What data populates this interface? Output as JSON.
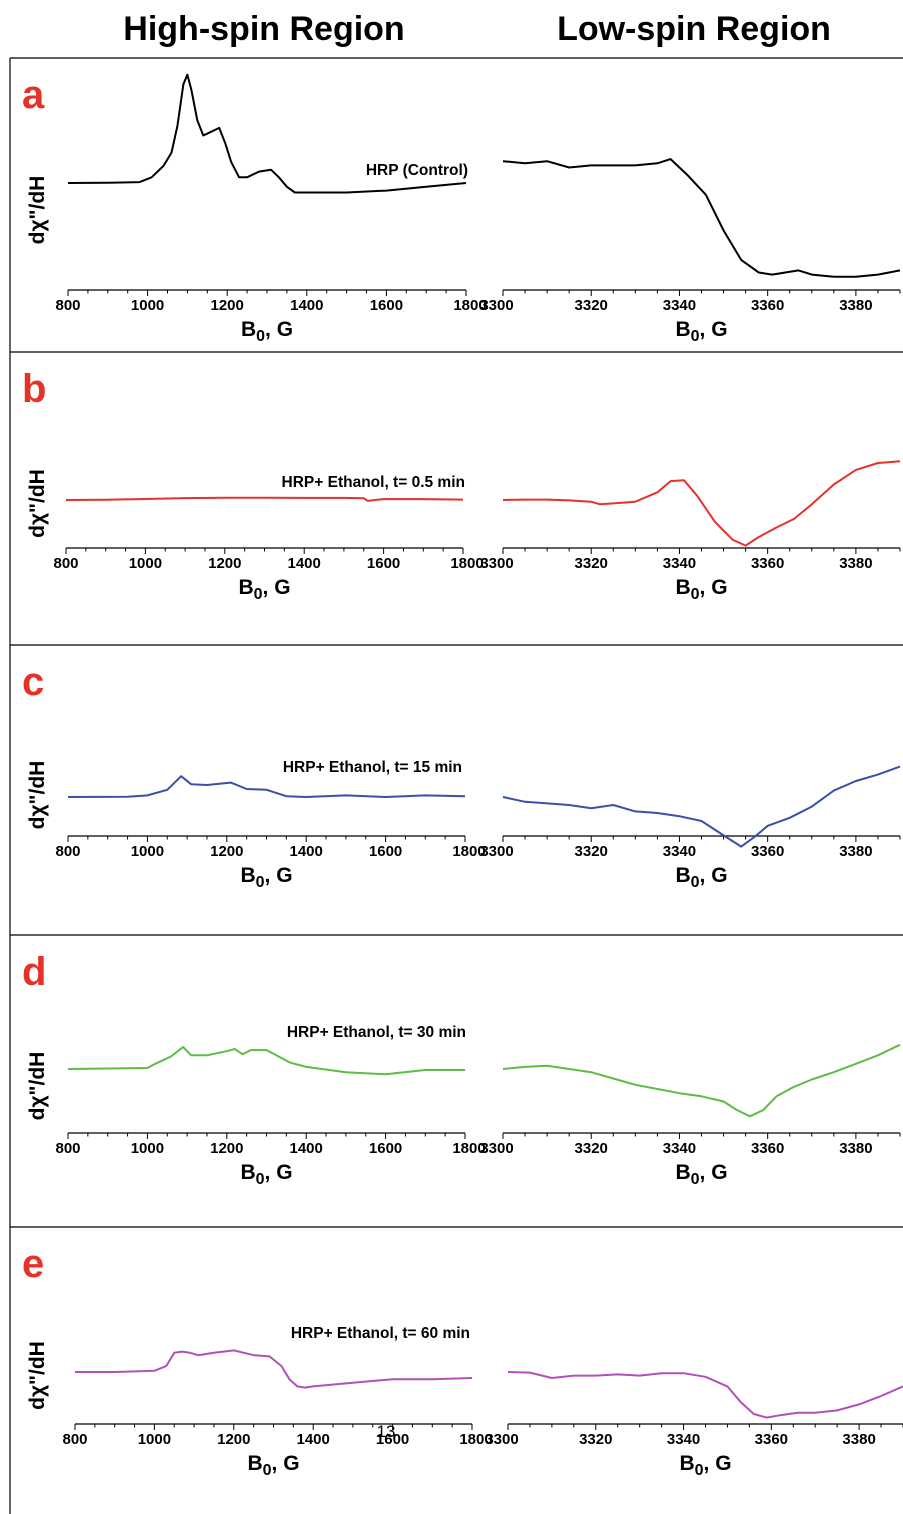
{
  "headers": {
    "left": "High-spin Region",
    "right": "Low-spin Region"
  },
  "page_number": "13",
  "colors": {
    "panel_label": "#e53229",
    "a": "#000000",
    "b": "#e5322d",
    "c": "#3a4fa8",
    "d": "#5dbb46",
    "e": "#b34fb8"
  },
  "chart_data": [
    {
      "panel": "a",
      "label": "a",
      "type": "line",
      "annotation": "HRP (Control)",
      "ylabel": "dχ\"/dH",
      "high_spin": {
        "xlabel": "B0, G",
        "xlim": [
          800,
          1800
        ],
        "xticks": [
          "800",
          "1000",
          "1200",
          "1400",
          "1600",
          "1800"
        ],
        "x": [
          800,
          900,
          980,
          1010,
          1040,
          1060,
          1075,
          1090,
          1100,
          1110,
          1125,
          1140,
          1160,
          1180,
          1195,
          1210,
          1230,
          1250,
          1280,
          1310,
          1330,
          1350,
          1370,
          1400,
          1500,
          1600,
          1700,
          1800
        ],
        "y": [
          0,
          0.01,
          0.05,
          0.3,
          0.9,
          1.6,
          3.0,
          5.2,
          5.7,
          4.9,
          3.3,
          2.5,
          2.7,
          2.9,
          2.1,
          1.1,
          0.3,
          0.3,
          0.6,
          0.7,
          0.3,
          -0.2,
          -0.5,
          -0.5,
          -0.5,
          -0.4,
          -0.2,
          0
        ]
      },
      "low_spin": {
        "xlabel": "B0, G",
        "xlim": [
          3300,
          3390
        ],
        "xticks": [
          "3300",
          "3320",
          "3340",
          "3360",
          "3380"
        ],
        "x": [
          3300,
          3305,
          3310,
          3315,
          3320,
          3325,
          3330,
          3335,
          3338,
          3342,
          3346,
          3350,
          3354,
          3358,
          3361,
          3364,
          3367,
          3370,
          3375,
          3380,
          3385,
          3390
        ],
        "y": [
          1.8,
          1.7,
          1.8,
          1.5,
          1.6,
          1.6,
          1.6,
          1.7,
          1.9,
          1.1,
          0.2,
          -1.5,
          -2.9,
          -3.5,
          -3.6,
          -3.5,
          -3.4,
          -3.6,
          -3.7,
          -3.7,
          -3.6,
          -3.4
        ]
      }
    },
    {
      "panel": "b",
      "label": "b",
      "type": "line",
      "annotation": "HRP+ Ethanol, t= 0.5 min",
      "ylabel": "dχ\"/dH",
      "high_spin": {
        "xlabel": "B0, G",
        "xlim": [
          800,
          1800
        ],
        "xticks": [
          "800",
          "1000",
          "1200",
          "1400",
          "1600",
          "1800"
        ],
        "x": [
          800,
          900,
          1000,
          1100,
          1200,
          1300,
          1400,
          1500,
          1550,
          1560,
          1600,
          1700,
          1800
        ],
        "y": [
          0,
          0.04,
          0.12,
          0.22,
          0.27,
          0.27,
          0.25,
          0.25,
          0.2,
          -0.1,
          0.1,
          0.1,
          0.05
        ]
      },
      "low_spin": {
        "xlabel": "B0, G",
        "xlim": [
          3300,
          3390
        ],
        "xticks": [
          "3300",
          "3320",
          "3340",
          "3360",
          "3380"
        ],
        "x": [
          3300,
          3305,
          3310,
          3315,
          3320,
          3322,
          3325,
          3330,
          3335,
          3338,
          3341,
          3344,
          3348,
          3352,
          3355,
          3358,
          3362,
          3366,
          3370,
          3375,
          3380,
          3385,
          3390
        ],
        "y": [
          0,
          0.05,
          0.05,
          -0.05,
          -0.2,
          -0.5,
          -0.4,
          -0.2,
          0.9,
          2.2,
          2.3,
          0.5,
          -2.5,
          -4.6,
          -5.3,
          -4.3,
          -3.2,
          -2.2,
          -0.5,
          1.8,
          3.5,
          4.3,
          4.5
        ]
      }
    },
    {
      "panel": "c",
      "label": "c",
      "type": "line",
      "annotation": "HRP+ Ethanol, t= 15 min",
      "ylabel": "dχ\"/dH",
      "high_spin": {
        "xlabel": "B0, G",
        "xlim": [
          800,
          1800
        ],
        "xticks": [
          "800",
          "1000",
          "1200",
          "1400",
          "1600",
          "1800"
        ],
        "x": [
          800,
          950,
          1000,
          1050,
          1085,
          1110,
          1150,
          1210,
          1250,
          1300,
          1350,
          1400,
          1500,
          1600,
          1700,
          1800
        ],
        "y": [
          0,
          0.02,
          0.1,
          0.45,
          1.3,
          0.8,
          0.75,
          0.9,
          0.5,
          0.45,
          0.05,
          0.0,
          0.1,
          0.0,
          0.1,
          0.05
        ]
      },
      "low_spin": {
        "xlabel": "B0, G",
        "xlim": [
          3300,
          3390
        ],
        "xticks": [
          "3300",
          "3320",
          "3340",
          "3360",
          "3380"
        ],
        "x": [
          3300,
          3305,
          3310,
          3315,
          3320,
          3325,
          3330,
          3335,
          3340,
          3345,
          3350,
          3354,
          3357,
          3360,
          3365,
          3370,
          3375,
          3380,
          3385,
          3390
        ],
        "y": [
          0,
          -0.3,
          -0.4,
          -0.5,
          -0.7,
          -0.5,
          -0.9,
          -1.0,
          -1.2,
          -1.5,
          -2.4,
          -3.1,
          -2.5,
          -1.8,
          -1.3,
          -0.6,
          0.4,
          1.0,
          1.4,
          1.9
        ]
      }
    },
    {
      "panel": "d",
      "label": "d",
      "type": "line",
      "annotation": "HRP+ Ethanol, t= 30 min",
      "ylabel": "dχ\"/dH",
      "high_spin": {
        "xlabel": "B0, G",
        "xlim": [
          800,
          1800
        ],
        "xticks": [
          "800",
          "1000",
          "1200",
          "1400",
          "1600",
          "1800"
        ],
        "x": [
          800,
          900,
          1000,
          1020,
          1060,
          1090,
          1110,
          1150,
          1200,
          1220,
          1240,
          1260,
          1300,
          1320,
          1360,
          1400,
          1500,
          1600,
          1700,
          1800
        ],
        "y": [
          0,
          0.05,
          0.1,
          0.5,
          1.2,
          2.1,
          1.3,
          1.3,
          1.7,
          1.9,
          1.4,
          1.8,
          1.8,
          1.4,
          0.6,
          0.2,
          -0.3,
          -0.5,
          -0.1,
          -0.1
        ]
      },
      "low_spin": {
        "xlabel": "B0, G",
        "xlim": [
          3300,
          3390
        ],
        "xticks": [
          "3300",
          "3320",
          "3340",
          "3360",
          "3380"
        ],
        "x": [
          3300,
          3305,
          3310,
          3315,
          3320,
          3325,
          3330,
          3335,
          3340,
          3345,
          3350,
          3353,
          3356,
          3359,
          3362,
          3366,
          3370,
          3375,
          3380,
          3385,
          3390
        ],
        "y": [
          0,
          0.2,
          0.3,
          0.0,
          -0.3,
          -0.9,
          -1.5,
          -1.9,
          -2.3,
          -2.6,
          -3.1,
          -3.9,
          -4.5,
          -3.9,
          -2.6,
          -1.7,
          -1.0,
          -0.3,
          0.5,
          1.3,
          2.3
        ]
      }
    },
    {
      "panel": "e",
      "label": "e",
      "type": "line",
      "annotation": "HRP+ Ethanol, t= 60 min",
      "ylabel": "dχ\"/dH",
      "high_spin": {
        "xlabel": "B0, G",
        "xlim": [
          800,
          1800
        ],
        "xticks": [
          "800",
          "1000",
          "1200",
          "1400",
          "1600",
          "1800"
        ],
        "x": [
          800,
          900,
          1000,
          1030,
          1050,
          1070,
          1090,
          1110,
          1150,
          1200,
          1250,
          1290,
          1320,
          1340,
          1360,
          1380,
          1400,
          1500,
          1600,
          1700,
          1800
        ],
        "y": [
          0,
          0.0,
          0.1,
          0.5,
          1.6,
          1.7,
          1.6,
          1.4,
          1.6,
          1.8,
          1.4,
          1.3,
          0.5,
          -0.6,
          -1.2,
          -1.3,
          -1.2,
          -0.9,
          -0.6,
          -0.6,
          -0.5
        ]
      },
      "low_spin": {
        "xlabel": "B0, G",
        "xlim": [
          3300,
          3390
        ],
        "xticks": [
          "3300",
          "3320",
          "3340",
          "3360",
          "3380"
        ],
        "x": [
          3300,
          3305,
          3310,
          3315,
          3320,
          3325,
          3330,
          3335,
          3340,
          3345,
          3350,
          3353,
          3356,
          3359,
          3362,
          3366,
          3370,
          3375,
          3380,
          3385,
          3390
        ],
        "y": [
          0,
          -0.05,
          -0.5,
          -0.3,
          -0.3,
          -0.2,
          -0.3,
          -0.1,
          -0.1,
          -0.4,
          -1.2,
          -2.5,
          -3.5,
          -3.8,
          -3.6,
          -3.4,
          -3.4,
          -3.2,
          -2.7,
          -2.0,
          -1.2
        ]
      }
    }
  ]
}
